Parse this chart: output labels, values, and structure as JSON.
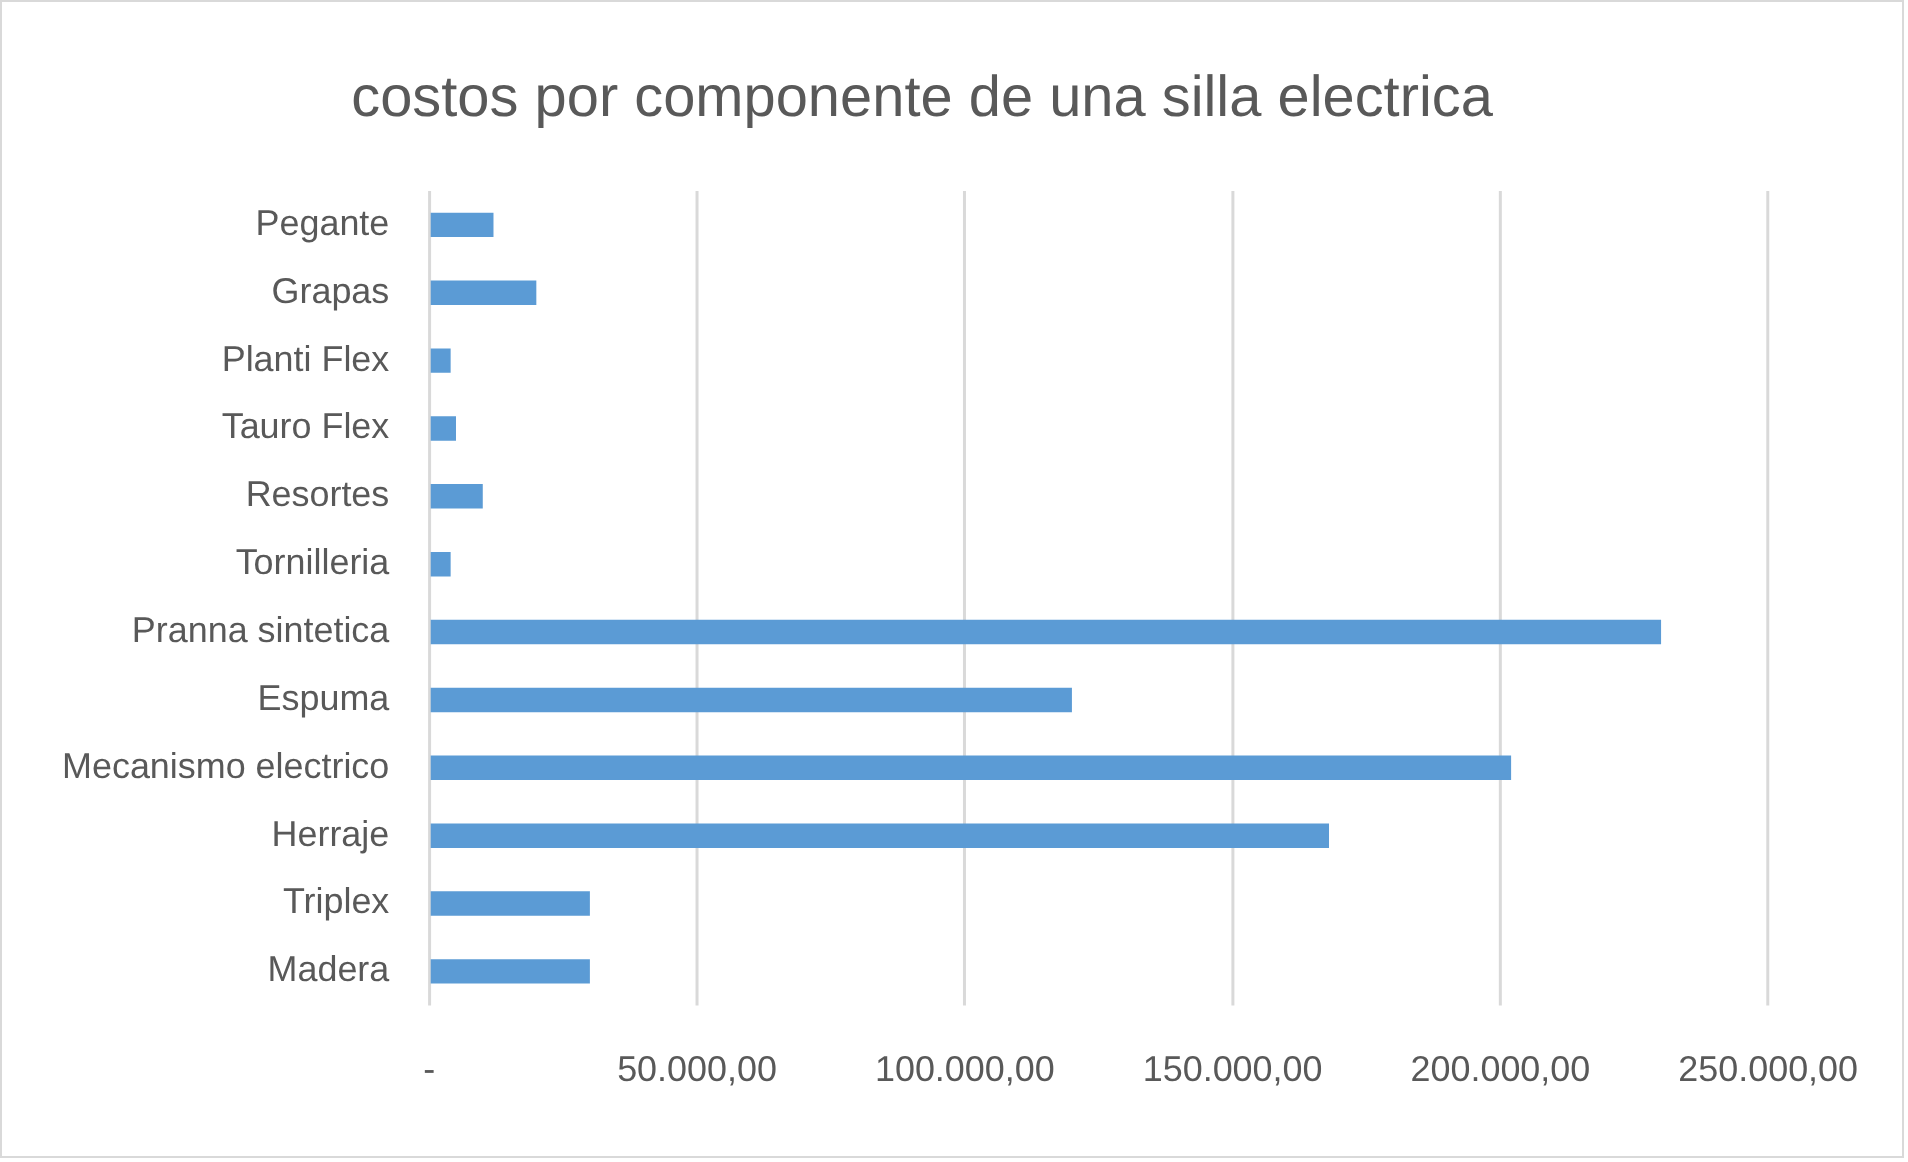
{
  "chart_data": {
    "type": "bar",
    "orientation": "horizontal",
    "title": "costos por componente de una silla electrica",
    "categories": [
      "Pegante",
      "Grapas",
      "Planti Flex",
      "Tauro Flex",
      "Resortes",
      "Tornilleria",
      "Pranna sintetica",
      "Espuma",
      "Mecanismo electrico",
      "Herraje",
      "Triplex",
      "Madera"
    ],
    "values": [
      12000,
      20000,
      4000,
      5000,
      10000,
      4000,
      230000,
      120000,
      202000,
      168000,
      30000,
      30000
    ],
    "color": "#5b9bd5",
    "xlim": [
      0,
      250000
    ],
    "xticks": [
      {
        "value": 0,
        "label": "-"
      },
      {
        "value": 50000,
        "label": "50.000,00"
      },
      {
        "value": 100000,
        "label": "100.000,00"
      },
      {
        "value": 150000,
        "label": "150.000,00"
      },
      {
        "value": 200000,
        "label": "200.000,00"
      },
      {
        "value": 250000,
        "label": "250.000,00"
      }
    ],
    "grid": "x",
    "legend": false
  }
}
